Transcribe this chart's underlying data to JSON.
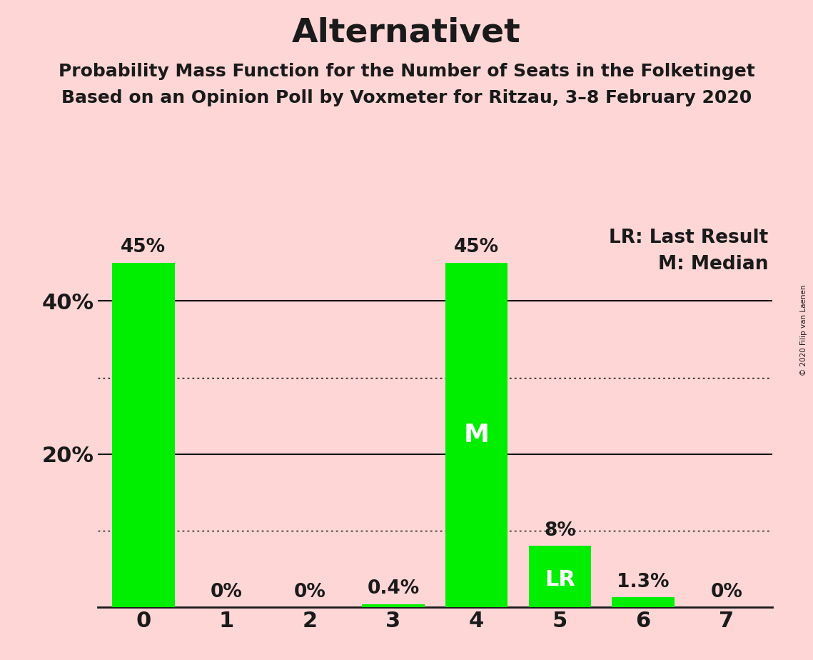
{
  "title": "Alternativet",
  "subtitle1": "Probability Mass Function for the Number of Seats in the Folketinget",
  "subtitle2": "Based on an Opinion Poll by Voxmeter for Ritzau, 3–8 February 2020",
  "copyright": "© 2020 Filip van Laenen",
  "categories": [
    0,
    1,
    2,
    3,
    4,
    5,
    6,
    7
  ],
  "values": [
    45.0,
    0.0,
    0.0,
    0.4,
    45.0,
    8.0,
    1.3,
    0.0
  ],
  "bar_color": "#00ee00",
  "background_color": "#ffd6d6",
  "bar_labels": [
    "45%",
    "0%",
    "0%",
    "0.4%",
    "45%",
    "8%",
    "1.3%",
    "0%"
  ],
  "median_bar": 4,
  "lr_bar": 5,
  "median_label": "M",
  "lr_label": "LR",
  "legend_lr": "LR: Last Result",
  "legend_m": "M: Median",
  "ylim_max": 50,
  "solid_gridlines": [
    40
  ],
  "dotted_gridlines": [
    10,
    30
  ],
  "solid_gridline_20": 20,
  "title_fontsize": 34,
  "subtitle_fontsize": 18,
  "tick_fontsize": 22,
  "legend_fontsize": 19,
  "bar_label_fontsize": 19,
  "inner_label_fontsize": 26,
  "lr_inner_fontsize": 22
}
